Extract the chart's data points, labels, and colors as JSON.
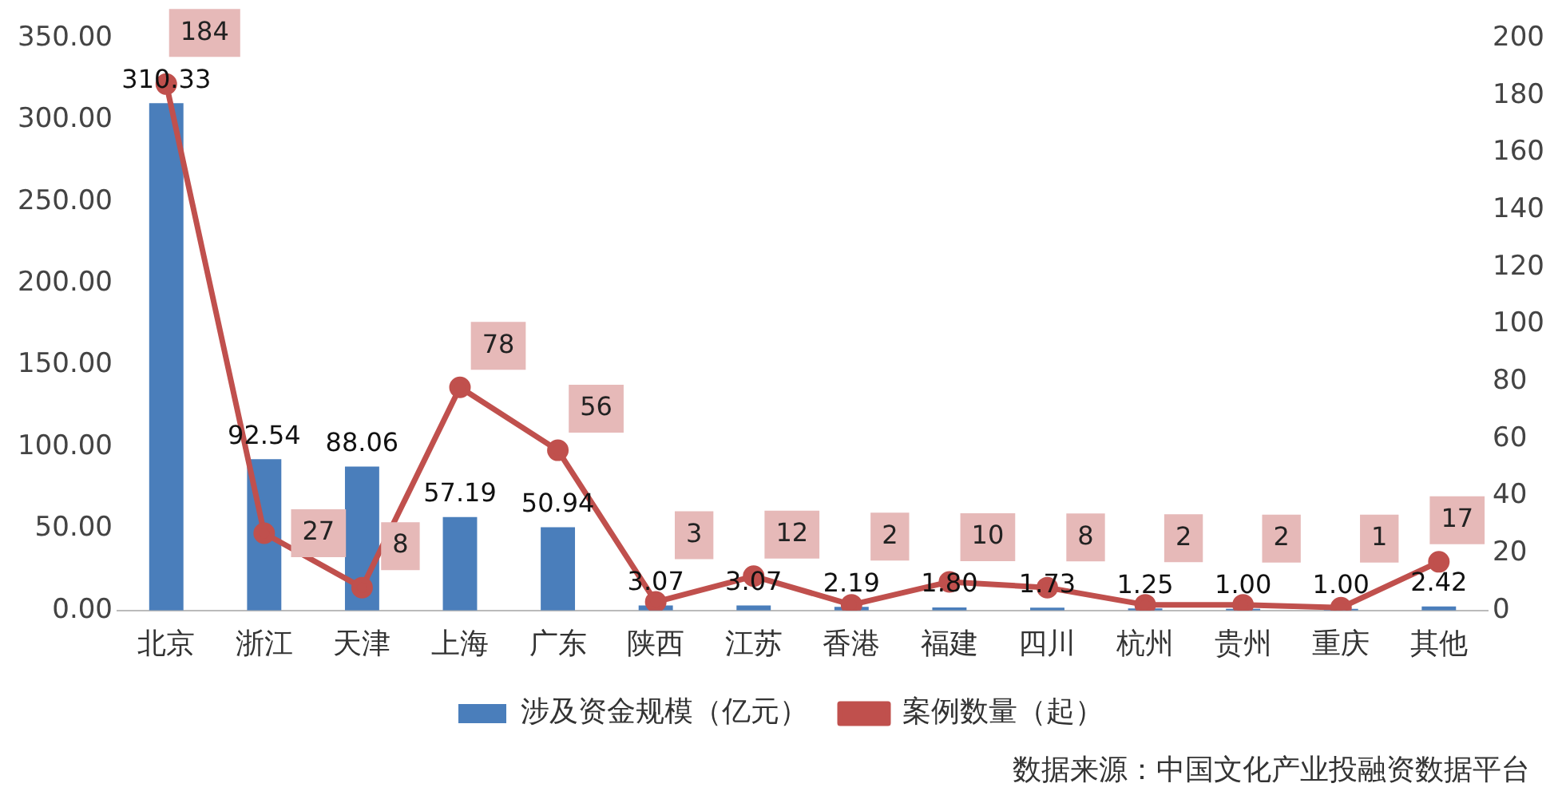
{
  "chart_data": {
    "type": "bar",
    "categories": [
      "北京",
      "浙江",
      "天津",
      "上海",
      "广东",
      "陕西",
      "江苏",
      "香港",
      "福建",
      "四川",
      "杭州",
      "贵州",
      "重庆",
      "其他"
    ],
    "series": [
      {
        "name": "涉及资金规模（亿元）",
        "color": "#4a7ebb",
        "values": [
          310.33,
          92.54,
          88.06,
          57.19,
          50.94,
          3.07,
          3.07,
          2.19,
          1.8,
          1.73,
          1.25,
          1.0,
          1.0,
          2.42
        ],
        "value_labels": [
          "310.33",
          "92.54",
          "88.06",
          "57.19",
          "50.94",
          "3.07",
          "3.07",
          "2.19",
          "1.80",
          "1.73",
          "1.25",
          "1.00",
          "1.00",
          "2.42"
        ]
      },
      {
        "name": "案例数量（起）",
        "type": "line",
        "axis": "y2",
        "color": "#c0504d",
        "values": [
          184,
          27,
          8,
          78,
          56,
          3,
          12,
          2,
          10,
          8,
          2,
          2,
          1,
          17
        ],
        "value_labels": [
          "184",
          "27",
          "8",
          "78",
          "56",
          "3",
          "12",
          "2",
          "10",
          "8",
          "2",
          "2",
          "1",
          "17"
        ]
      }
    ],
    "ylim": [
      0,
      350
    ],
    "yticks": [
      {
        "value": 0,
        "label": "0.00"
      },
      {
        "value": 50,
        "label": "50.00"
      },
      {
        "value": 100,
        "label": "100.00"
      },
      {
        "value": 150,
        "label": "150.00"
      },
      {
        "value": 200,
        "label": "200.00"
      },
      {
        "value": 250,
        "label": "250.00"
      },
      {
        "value": 300,
        "label": "300.00"
      },
      {
        "value": 350,
        "label": "350.00"
      }
    ],
    "y2lim": [
      0,
      200
    ],
    "y2ticks": [
      0,
      20,
      40,
      60,
      80,
      100,
      120,
      140,
      160,
      180,
      200
    ],
    "grid": false,
    "legend": "bottom",
    "marker": "circle",
    "line_style": "solid",
    "annotations": [
      "数据来源：中国文化产业投融资数据平台"
    ]
  }
}
